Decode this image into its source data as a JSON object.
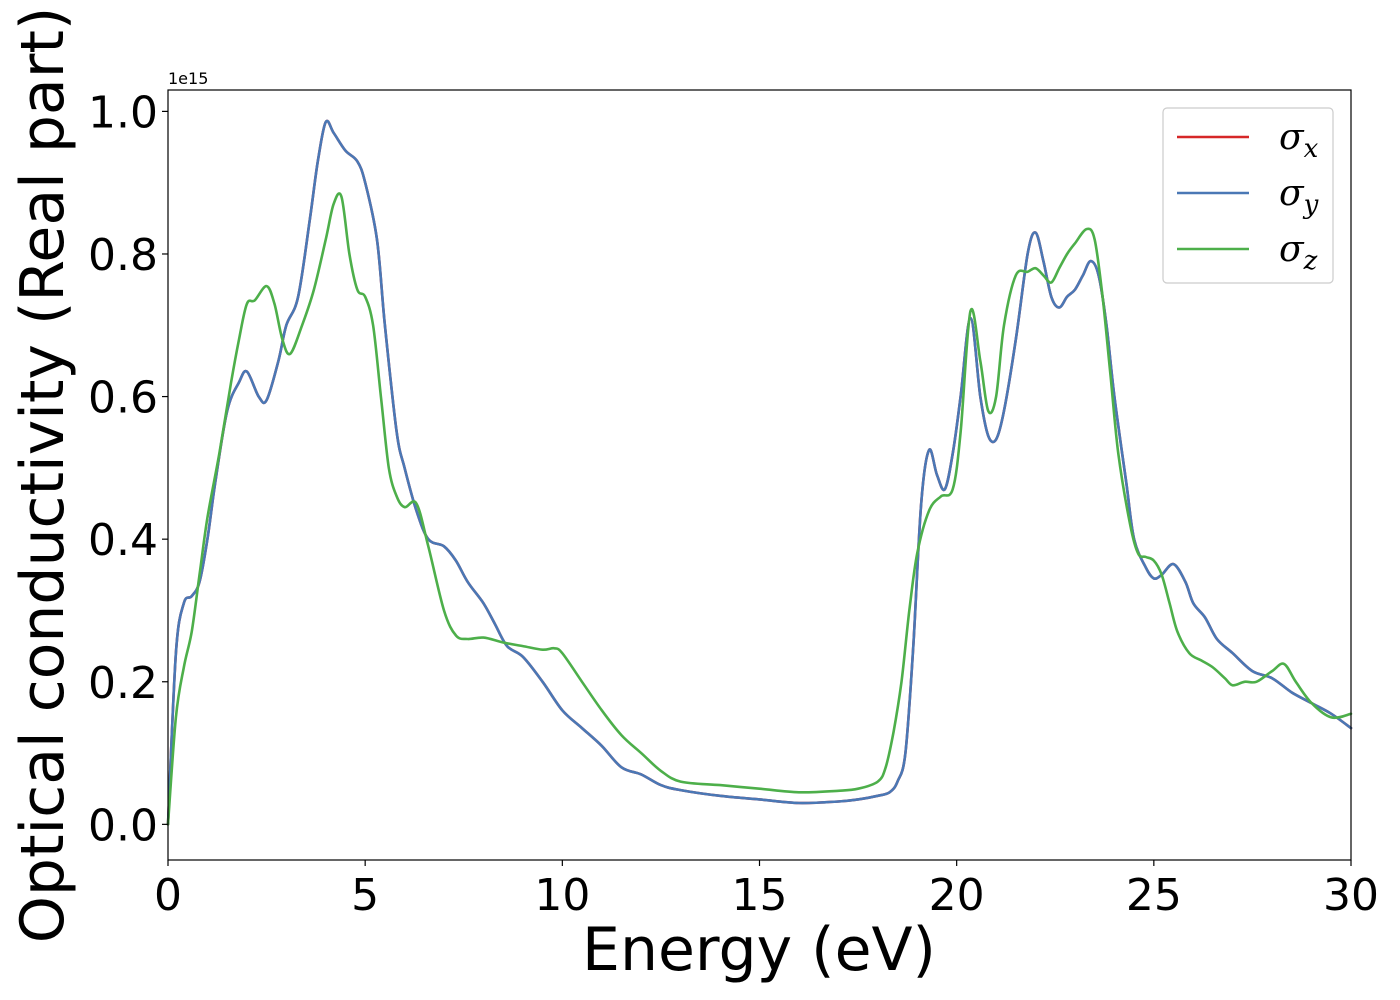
{
  "chart_data": {
    "type": "line",
    "title": "",
    "xlabel": "Energy (eV)",
    "ylabel": "Optical conductivity (Real part)",
    "y_offset_label": "1e15",
    "xlim": [
      0,
      30
    ],
    "ylim": [
      -0.05,
      1.03
    ],
    "x_ticks": [
      0,
      5,
      10,
      15,
      20,
      25,
      30
    ],
    "x_tick_labels": [
      "0",
      "5",
      "10",
      "15",
      "20",
      "25",
      "30"
    ],
    "y_ticks": [
      0.0,
      0.2,
      0.4,
      0.6,
      0.8,
      1.0
    ],
    "y_tick_labels": [
      "0.0",
      "0.2",
      "0.4",
      "0.6",
      "0.8",
      "1.0"
    ],
    "grid": false,
    "legend_position": "top-right",
    "series": [
      {
        "name": "σx",
        "symbol": "σ",
        "subscript": "x",
        "color": "#d62728",
        "x": [
          0,
          0.2,
          0.4,
          0.6,
          0.8,
          1.0,
          1.2,
          1.5,
          1.8,
          2.0,
          2.3,
          2.5,
          2.8,
          3.0,
          3.3,
          3.6,
          3.8,
          4.0,
          4.2,
          4.5,
          4.8,
          5.0,
          5.3,
          5.5,
          5.8,
          6.0,
          6.3,
          6.6,
          7.0,
          7.3,
          7.6,
          8.0,
          8.3,
          8.6,
          9.0,
          9.5,
          10.0,
          10.5,
          11.0,
          11.5,
          12.0,
          12.5,
          13.0,
          14.0,
          15.0,
          16.0,
          17.0,
          17.5,
          18.0,
          18.3,
          18.5,
          18.7,
          18.9,
          19.1,
          19.3,
          19.5,
          19.7,
          19.9,
          20.1,
          20.35,
          20.6,
          20.8,
          21.0,
          21.2,
          21.5,
          21.8,
          22.0,
          22.2,
          22.4,
          22.6,
          22.8,
          23.0,
          23.2,
          23.4,
          23.6,
          23.8,
          24.0,
          24.3,
          24.5,
          24.8,
          25.0,
          25.2,
          25.5,
          25.8,
          26.0,
          26.3,
          26.6,
          27.0,
          27.5,
          28.0,
          28.5,
          29.0,
          29.5,
          30.0
        ],
        "values": [
          0.0,
          0.24,
          0.31,
          0.32,
          0.34,
          0.4,
          0.48,
          0.58,
          0.62,
          0.635,
          0.6,
          0.595,
          0.65,
          0.7,
          0.74,
          0.85,
          0.93,
          0.985,
          0.97,
          0.945,
          0.93,
          0.9,
          0.82,
          0.7,
          0.55,
          0.5,
          0.44,
          0.4,
          0.39,
          0.37,
          0.34,
          0.31,
          0.28,
          0.25,
          0.235,
          0.2,
          0.16,
          0.135,
          0.11,
          0.08,
          0.07,
          0.055,
          0.048,
          0.04,
          0.035,
          0.03,
          0.032,
          0.035,
          0.04,
          0.045,
          0.06,
          0.1,
          0.25,
          0.45,
          0.525,
          0.49,
          0.47,
          0.52,
          0.6,
          0.71,
          0.6,
          0.545,
          0.54,
          0.58,
          0.68,
          0.8,
          0.83,
          0.79,
          0.74,
          0.725,
          0.74,
          0.75,
          0.77,
          0.79,
          0.77,
          0.7,
          0.6,
          0.48,
          0.4,
          0.36,
          0.345,
          0.35,
          0.365,
          0.34,
          0.31,
          0.29,
          0.26,
          0.24,
          0.215,
          0.205,
          0.185,
          0.17,
          0.155,
          0.135
        ]
      },
      {
        "name": "σy",
        "symbol": "σ",
        "subscript": "y",
        "color": "#4a78b5",
        "x": [
          0,
          0.2,
          0.4,
          0.6,
          0.8,
          1.0,
          1.2,
          1.5,
          1.8,
          2.0,
          2.3,
          2.5,
          2.8,
          3.0,
          3.3,
          3.6,
          3.8,
          4.0,
          4.2,
          4.5,
          4.8,
          5.0,
          5.3,
          5.5,
          5.8,
          6.0,
          6.3,
          6.6,
          7.0,
          7.3,
          7.6,
          8.0,
          8.3,
          8.6,
          9.0,
          9.5,
          10.0,
          10.5,
          11.0,
          11.5,
          12.0,
          12.5,
          13.0,
          14.0,
          15.0,
          16.0,
          17.0,
          17.5,
          18.0,
          18.3,
          18.5,
          18.7,
          18.9,
          19.1,
          19.3,
          19.5,
          19.7,
          19.9,
          20.1,
          20.35,
          20.6,
          20.8,
          21.0,
          21.2,
          21.5,
          21.8,
          22.0,
          22.2,
          22.4,
          22.6,
          22.8,
          23.0,
          23.2,
          23.4,
          23.6,
          23.8,
          24.0,
          24.3,
          24.5,
          24.8,
          25.0,
          25.2,
          25.5,
          25.8,
          26.0,
          26.3,
          26.6,
          27.0,
          27.5,
          28.0,
          28.5,
          29.0,
          29.5,
          30.0
        ],
        "values": [
          0.0,
          0.24,
          0.31,
          0.32,
          0.34,
          0.4,
          0.48,
          0.58,
          0.62,
          0.635,
          0.6,
          0.595,
          0.65,
          0.7,
          0.74,
          0.85,
          0.93,
          0.985,
          0.97,
          0.945,
          0.93,
          0.9,
          0.82,
          0.7,
          0.55,
          0.5,
          0.44,
          0.4,
          0.39,
          0.37,
          0.34,
          0.31,
          0.28,
          0.25,
          0.235,
          0.2,
          0.16,
          0.135,
          0.11,
          0.08,
          0.07,
          0.055,
          0.048,
          0.04,
          0.035,
          0.03,
          0.032,
          0.035,
          0.04,
          0.045,
          0.06,
          0.1,
          0.25,
          0.45,
          0.525,
          0.49,
          0.47,
          0.52,
          0.6,
          0.71,
          0.6,
          0.545,
          0.54,
          0.58,
          0.68,
          0.8,
          0.83,
          0.79,
          0.74,
          0.725,
          0.74,
          0.75,
          0.77,
          0.79,
          0.77,
          0.7,
          0.6,
          0.48,
          0.4,
          0.36,
          0.345,
          0.35,
          0.365,
          0.34,
          0.31,
          0.29,
          0.26,
          0.24,
          0.215,
          0.205,
          0.185,
          0.17,
          0.155,
          0.135
        ]
      },
      {
        "name": "σz",
        "symbol": "σ",
        "subscript": "z",
        "color": "#4daf4a",
        "x": [
          0,
          0.2,
          0.4,
          0.6,
          0.8,
          1.0,
          1.3,
          1.6,
          1.8,
          2.0,
          2.2,
          2.5,
          2.7,
          2.9,
          3.1,
          3.4,
          3.7,
          4.0,
          4.2,
          4.4,
          4.6,
          4.8,
          5.0,
          5.2,
          5.4,
          5.6,
          5.8,
          6.0,
          6.3,
          6.6,
          7.0,
          7.3,
          7.6,
          8.0,
          8.5,
          9.0,
          9.5,
          9.8,
          10.0,
          10.5,
          11.0,
          11.5,
          12.0,
          12.5,
          13.0,
          14.0,
          15.0,
          16.0,
          17.0,
          17.5,
          18.0,
          18.2,
          18.4,
          18.6,
          18.8,
          19.0,
          19.3,
          19.6,
          19.9,
          20.1,
          20.35,
          20.6,
          20.8,
          21.0,
          21.2,
          21.5,
          21.8,
          22.0,
          22.2,
          22.4,
          22.6,
          22.8,
          23.0,
          23.3,
          23.5,
          23.7,
          23.9,
          24.1,
          24.4,
          24.6,
          24.8,
          25.0,
          25.2,
          25.4,
          25.6,
          25.9,
          26.2,
          26.5,
          26.8,
          27.0,
          27.3,
          27.6,
          28.0,
          28.3,
          28.6,
          29.0,
          29.5,
          30.0
        ],
        "values": [
          0.0,
          0.15,
          0.22,
          0.27,
          0.35,
          0.43,
          0.52,
          0.62,
          0.68,
          0.73,
          0.735,
          0.755,
          0.73,
          0.68,
          0.66,
          0.7,
          0.75,
          0.82,
          0.87,
          0.88,
          0.8,
          0.75,
          0.74,
          0.7,
          0.6,
          0.5,
          0.46,
          0.445,
          0.45,
          0.39,
          0.3,
          0.265,
          0.26,
          0.262,
          0.255,
          0.25,
          0.245,
          0.247,
          0.24,
          0.2,
          0.16,
          0.125,
          0.1,
          0.075,
          0.06,
          0.055,
          0.05,
          0.045,
          0.047,
          0.05,
          0.06,
          0.08,
          0.13,
          0.2,
          0.3,
          0.38,
          0.44,
          0.46,
          0.47,
          0.55,
          0.72,
          0.65,
          0.58,
          0.6,
          0.7,
          0.77,
          0.775,
          0.78,
          0.77,
          0.76,
          0.78,
          0.8,
          0.815,
          0.835,
          0.82,
          0.74,
          0.63,
          0.52,
          0.42,
          0.38,
          0.375,
          0.37,
          0.35,
          0.31,
          0.27,
          0.24,
          0.23,
          0.22,
          0.205,
          0.195,
          0.2,
          0.2,
          0.215,
          0.225,
          0.2,
          0.17,
          0.15,
          0.155
        ]
      }
    ]
  }
}
